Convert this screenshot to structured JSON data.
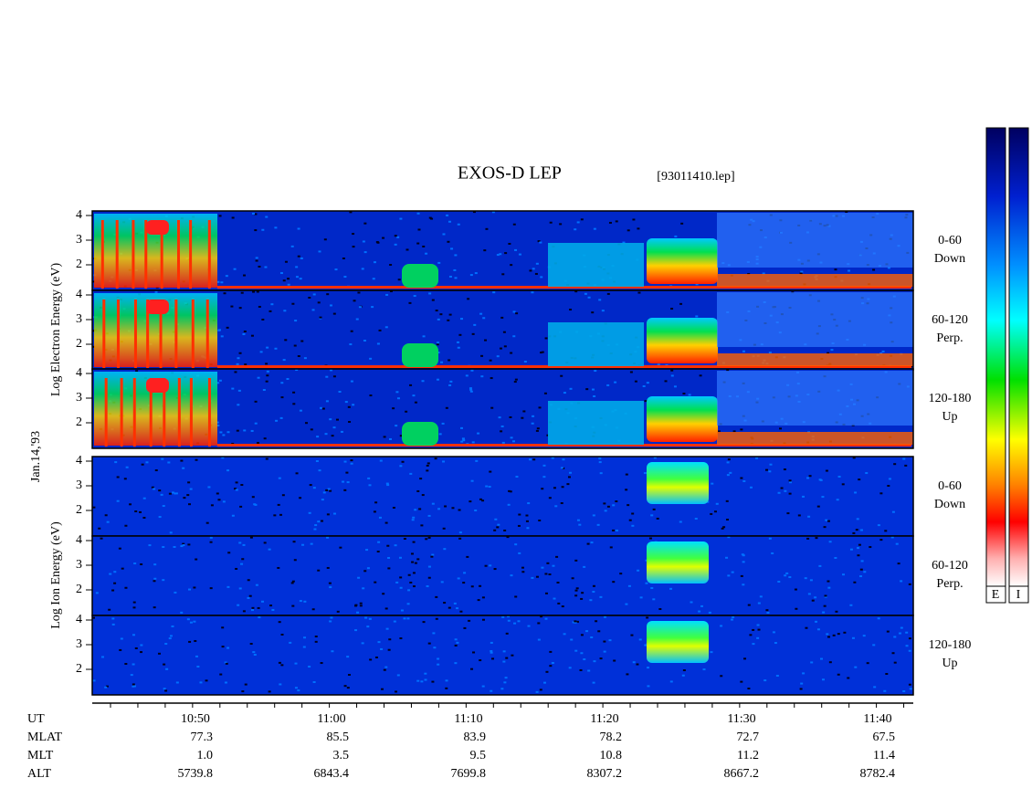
{
  "header": {
    "title": "EXOS-D LEP",
    "file": "[93011410.lep]"
  },
  "date": "Jan.14,'93",
  "electron_axis": "Log  Electron  Energy (eV)",
  "ion_axis": "Log  Ion  Energy (eV)",
  "energy_ticks": [
    "4",
    "3",
    "2"
  ],
  "panels": [
    {
      "angle": "0-60",
      "direction": "Down"
    },
    {
      "angle": "60-120",
      "direction": "Perp."
    },
    {
      "angle": "120-180",
      "direction": "Up"
    },
    {
      "angle": "0-60",
      "direction": "Down"
    },
    {
      "angle": "60-120",
      "direction": "Perp."
    },
    {
      "angle": "120-180",
      "direction": "Up"
    }
  ],
  "ephemeris": {
    "labels": [
      "UT",
      "MLAT",
      "MLT",
      "ALT"
    ],
    "UT": [
      "10:50",
      "11:00",
      "11:10",
      "11:20",
      "11:30",
      "11:40"
    ],
    "MLAT": [
      "77.3",
      "85.5",
      "83.9",
      "78.2",
      "72.7",
      "67.5"
    ],
    "MLT": [
      "1.0",
      "3.5",
      "9.5",
      "10.8",
      "11.2",
      "11.4"
    ],
    "ALT": [
      "5739.8",
      "6843.4",
      "7699.8",
      "8307.2",
      "8667.2",
      "8782.4"
    ]
  },
  "colorbar": [
    "E",
    "I"
  ]
}
